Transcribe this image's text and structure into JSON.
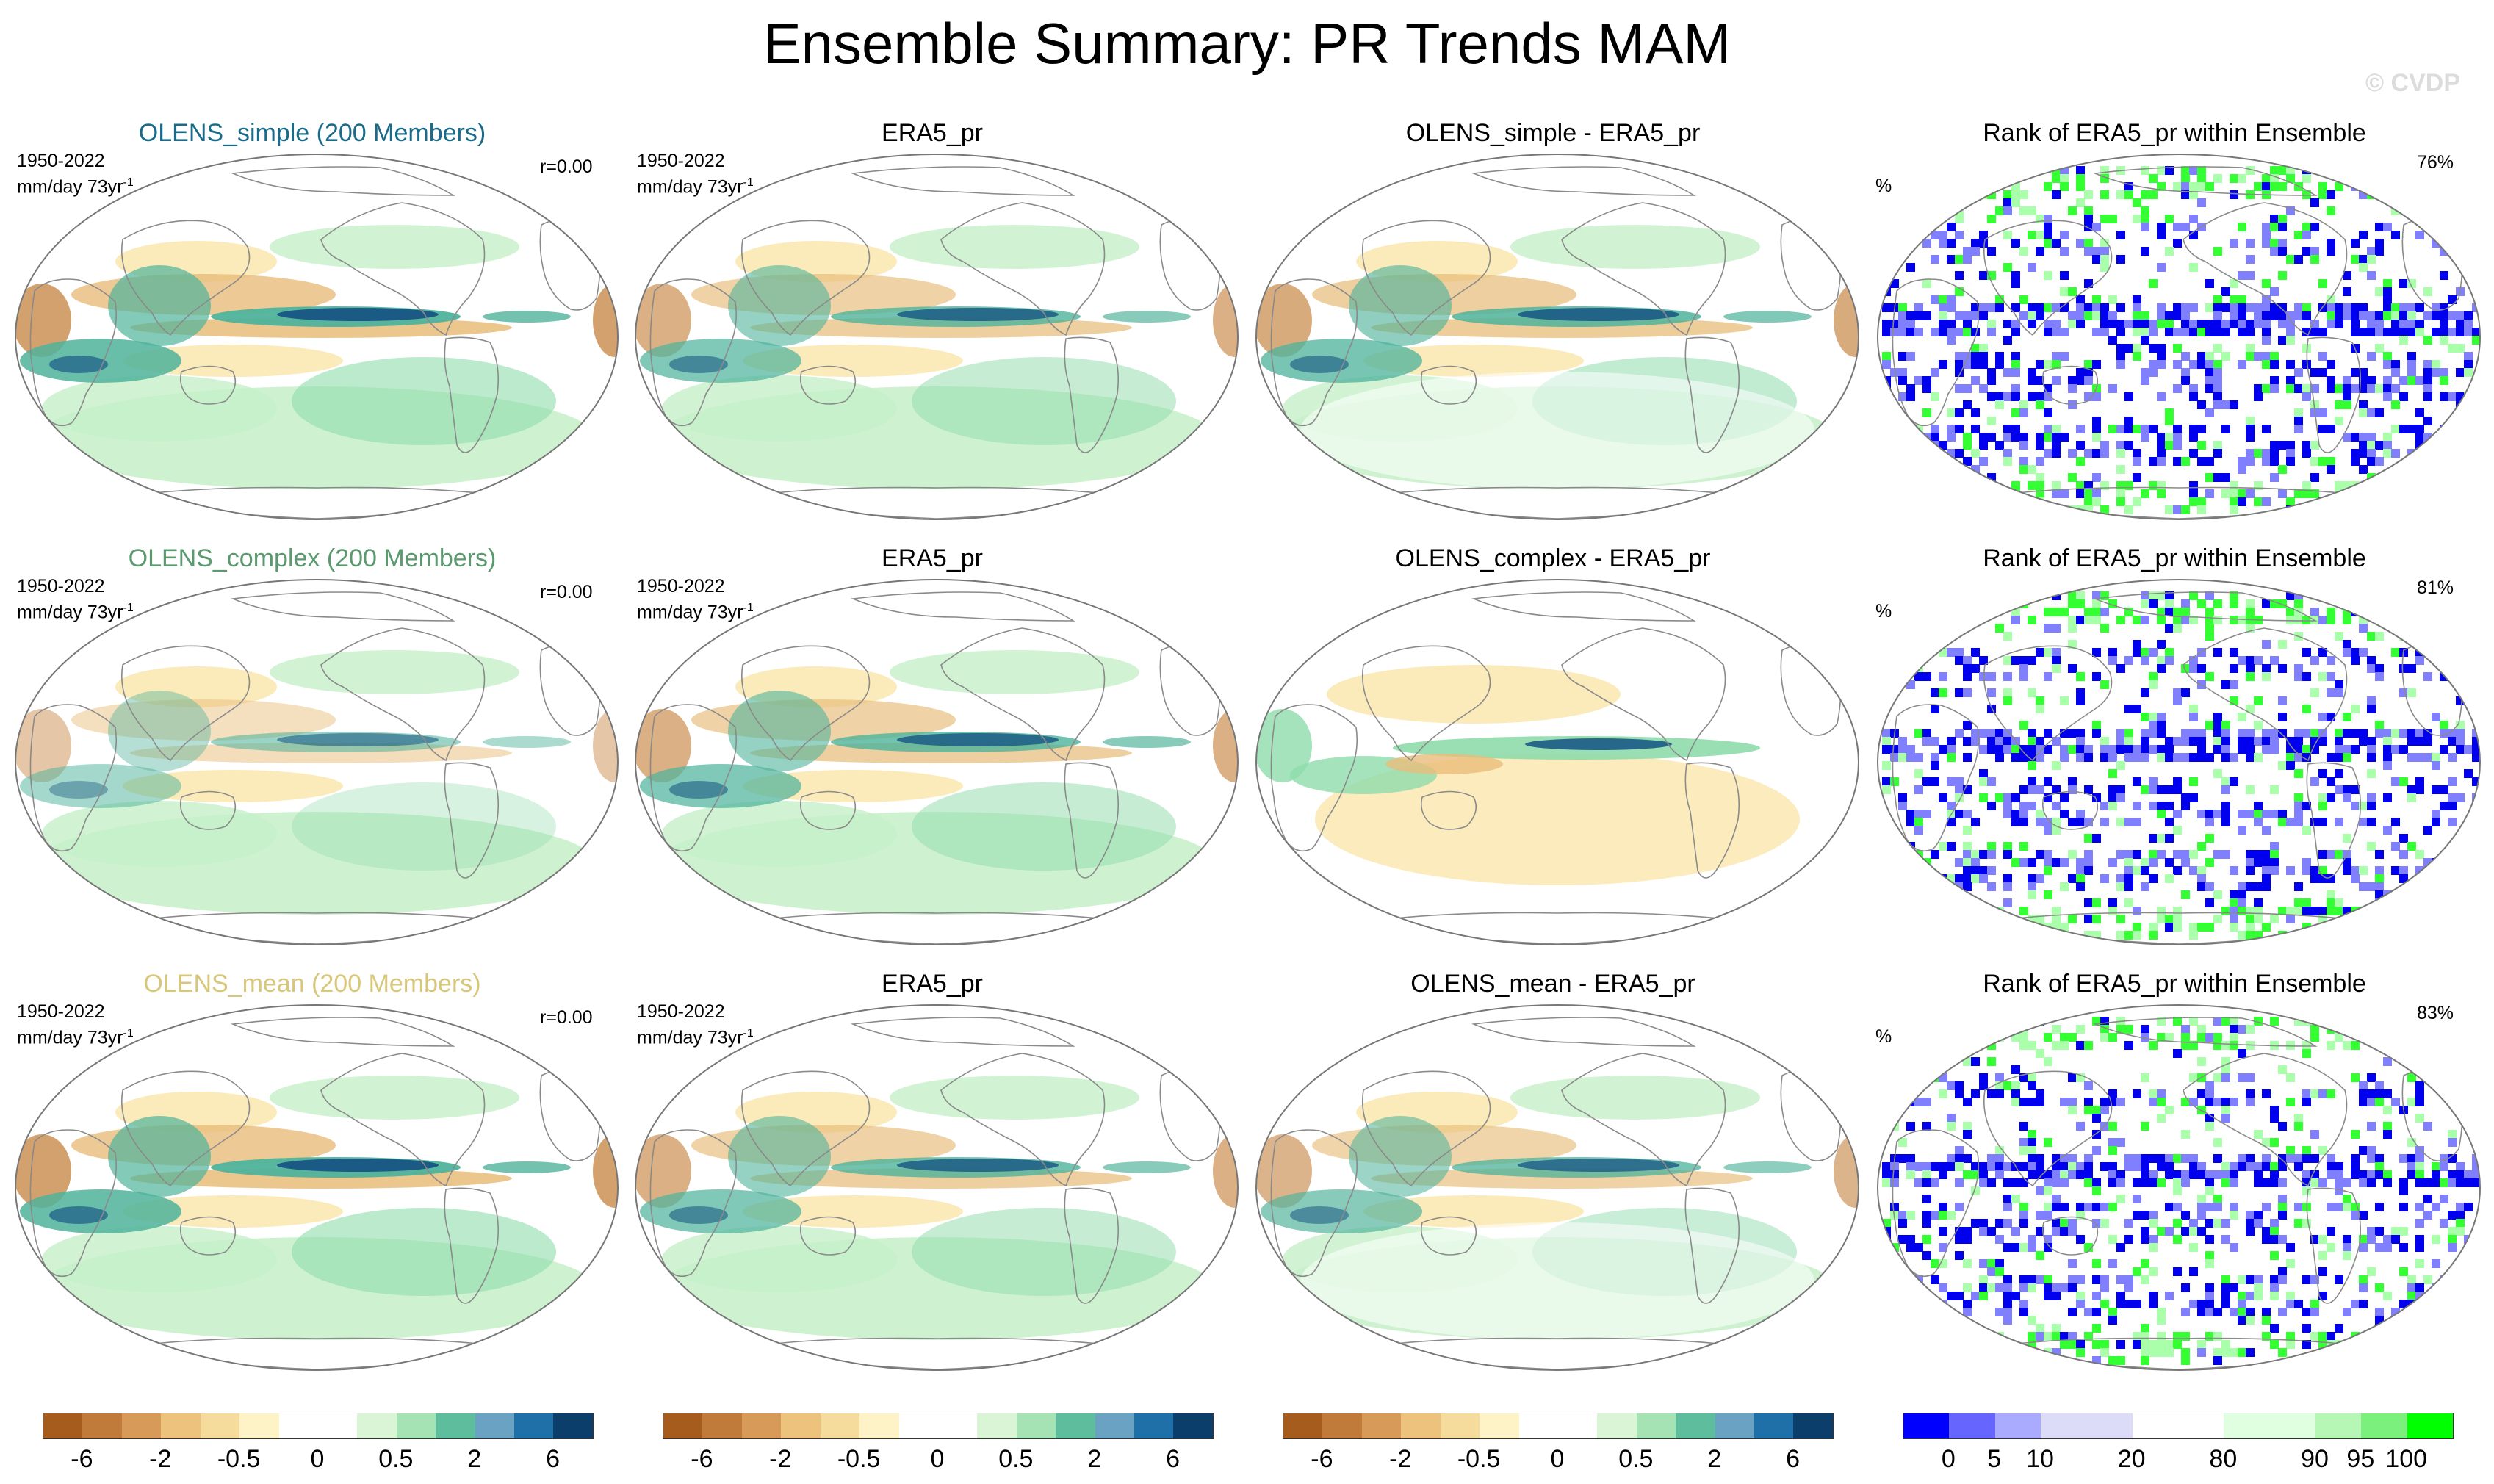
{
  "title": "Ensemble Summary: PR Trends MAM",
  "watermark": "© CVDP",
  "period": "1950-2022",
  "units": "mm/day 73yr",
  "units_sup": "-1",
  "pct_sign": "%",
  "rows": [
    {
      "model_title": "OLENS_simple (200 Members)",
      "model_color": "#1a6b8a",
      "r": "r=0.00",
      "obs_title": "ERA5_pr",
      "diff_title": "OLENS_simple - ERA5_pr",
      "rank_title": "Rank of ERA5_pr within Ensemble",
      "rank_pct": "76%"
    },
    {
      "model_title": "OLENS_complex (200 Members)",
      "model_color": "#5a9a6e",
      "r": "r=0.00",
      "obs_title": "ERA5_pr",
      "diff_title": "OLENS_complex - ERA5_pr",
      "rank_title": "Rank of ERA5_pr within Ensemble",
      "rank_pct": "81%"
    },
    {
      "model_title": "OLENS_mean (200 Members)",
      "model_color": "#d8c77a",
      "r": "r=0.00",
      "obs_title": "ERA5_pr",
      "diff_title": "OLENS_mean - ERA5_pr",
      "rank_title": "Rank of ERA5_pr within Ensemble",
      "rank_pct": "83%"
    }
  ],
  "trend_colorbar": {
    "colors": [
      "#a65c1c",
      "#c07b3a",
      "#d89a58",
      "#ecc27c",
      "#f6dc9c",
      "#fdf3c6",
      "#ffffff",
      "#ffffff",
      "#d9f5d6",
      "#a6e3b4",
      "#5dbd9c",
      "#6aa2c4",
      "#1f6fa8",
      "#0b3e6b"
    ],
    "labels": [
      "-6",
      "-2",
      "-0.5",
      "0",
      "0.5",
      "2",
      "6"
    ]
  },
  "rank_colorbar": {
    "colors": [
      "#0000ff",
      "#6666ff",
      "#aaaaff",
      "#dcdcf8",
      "#dcdcf8",
      "#ffffff",
      "#ffffff",
      "#e0ffe0",
      "#e0ffe0",
      "#b6f7b6",
      "#7cf07c",
      "#00ff00"
    ],
    "labels": [
      "0",
      "5",
      "10",
      "20",
      "80",
      "90",
      "95",
      "100"
    ]
  },
  "legend_layer_colors": {
    "land": "#ffffff",
    "coast": "#8a8a8a",
    "pos_light": "#c6f0c8",
    "pos_mid": "#8fdcab",
    "pos_strong": "#4fb39b",
    "pos_max": "#1b5a84",
    "neg_light": "#fbe8b2",
    "neg_mid": "#e8bd7a",
    "neg_strong": "#c88a4a",
    "rank_low": "#0000ee",
    "rank_lowmid": "#8080ff",
    "rank_high": "#33ff33",
    "rank_highmid": "#aaffaa"
  }
}
